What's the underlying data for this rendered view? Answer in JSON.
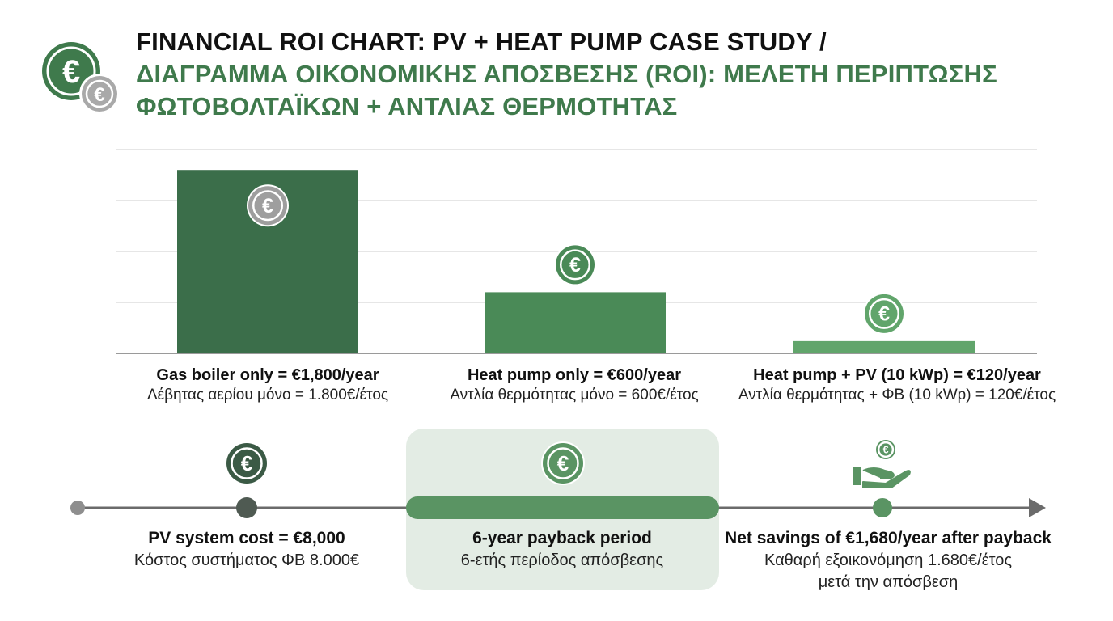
{
  "header": {
    "title_en": "FINANCIAL ROI CHART: PV + HEAT PUMP CASE STUDY /",
    "title_gr_line1": "ΔΙΑΓΡΑΜΜΑ ΟΙΚΟΝΟΜΙΚΗΣ ΑΠΟΣΒΕΣΗΣ (ROI): ΜΕΛΕΤΗ ΠΕΡΙΠΤΩΣΗΣ",
    "title_gr_line2": "ΦΩΤΟΒΟΛΤΑΪΚΩΝ + ΑΝΤΛΙΑΣ ΘΕΡΜΟΤΗΤΑΣ"
  },
  "icons": {
    "euro_symbol": "€",
    "logo": "euro-coins-icon",
    "coin": "euro-coin-icon",
    "hand": "hand-coin-icon"
  },
  "colors": {
    "title_green": "#3f7a4c",
    "bar_gas": "#3b6e4a",
    "bar_heat_pump": "#4a8a57",
    "bar_pv": "#61a56b",
    "coin_grey": "#9e9e9e",
    "timeline_grey": "#6b6b6b",
    "payback_bar": "#5a9463",
    "payback_box": "#e3ece4"
  },
  "chart_data": {
    "type": "bar",
    "categories": [
      "Gas boiler only",
      "Heat pump only",
      "Heat pump + PV (10 kWp)"
    ],
    "values": [
      1800,
      600,
      120
    ],
    "unit": "€/year",
    "ylim": [
      0,
      2000
    ],
    "grid": true,
    "labels_en": [
      "Gas boiler only = €1,800/year",
      "Heat pump only = €600/year",
      "Heat pump + PV (10 kWp) = €120/year"
    ],
    "labels_gr": [
      "Λέβητας αερίου μόνο = 1.800€/έτος",
      "Αντλία θερμότητας μόνο = 600€/έτος",
      "Αντλία θερμότητας + ΦΒ (10 kWp) = 120€/έτος"
    ]
  },
  "timeline": {
    "pv_cost_en": "PV system cost = €8,000",
    "pv_cost_gr": "Κόστος συστήματος ΦΒ 8.000€",
    "payback_en": "6-year payback period",
    "payback_gr": "6-ετής περίοδος απόσβεσης",
    "savings_en": "Net savings of €1,680/year after payback",
    "savings_gr_line1": "Καθαρή εξοικονόμηση 1.680€/έτος",
    "savings_gr_line2": "μετά την απόσβεση"
  }
}
